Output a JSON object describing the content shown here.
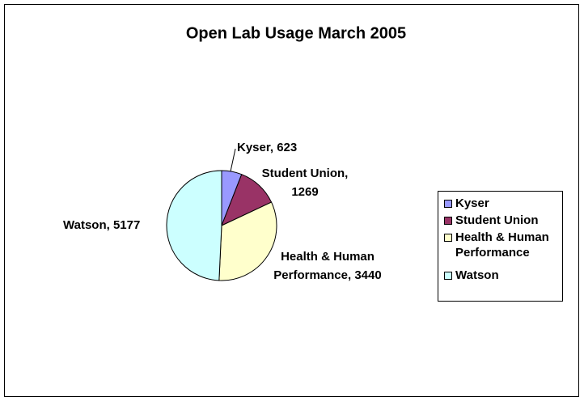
{
  "chart_data": {
    "type": "pie",
    "title": "Open Lab Usage March 2005",
    "categories": [
      "Kyser",
      "Student Union",
      "Health & Human Performance",
      "Watson"
    ],
    "values": [
      623,
      1269,
      3440,
      5177
    ],
    "value_labels": [
      "Kyser, 623",
      "Student Union, 1269",
      "Health & Human Performance, 3440",
      "Watson, 5177"
    ],
    "colors": [
      "#9999ff",
      "#993366",
      "#ffffcc",
      "#ccffff"
    ],
    "legend": "right"
  }
}
